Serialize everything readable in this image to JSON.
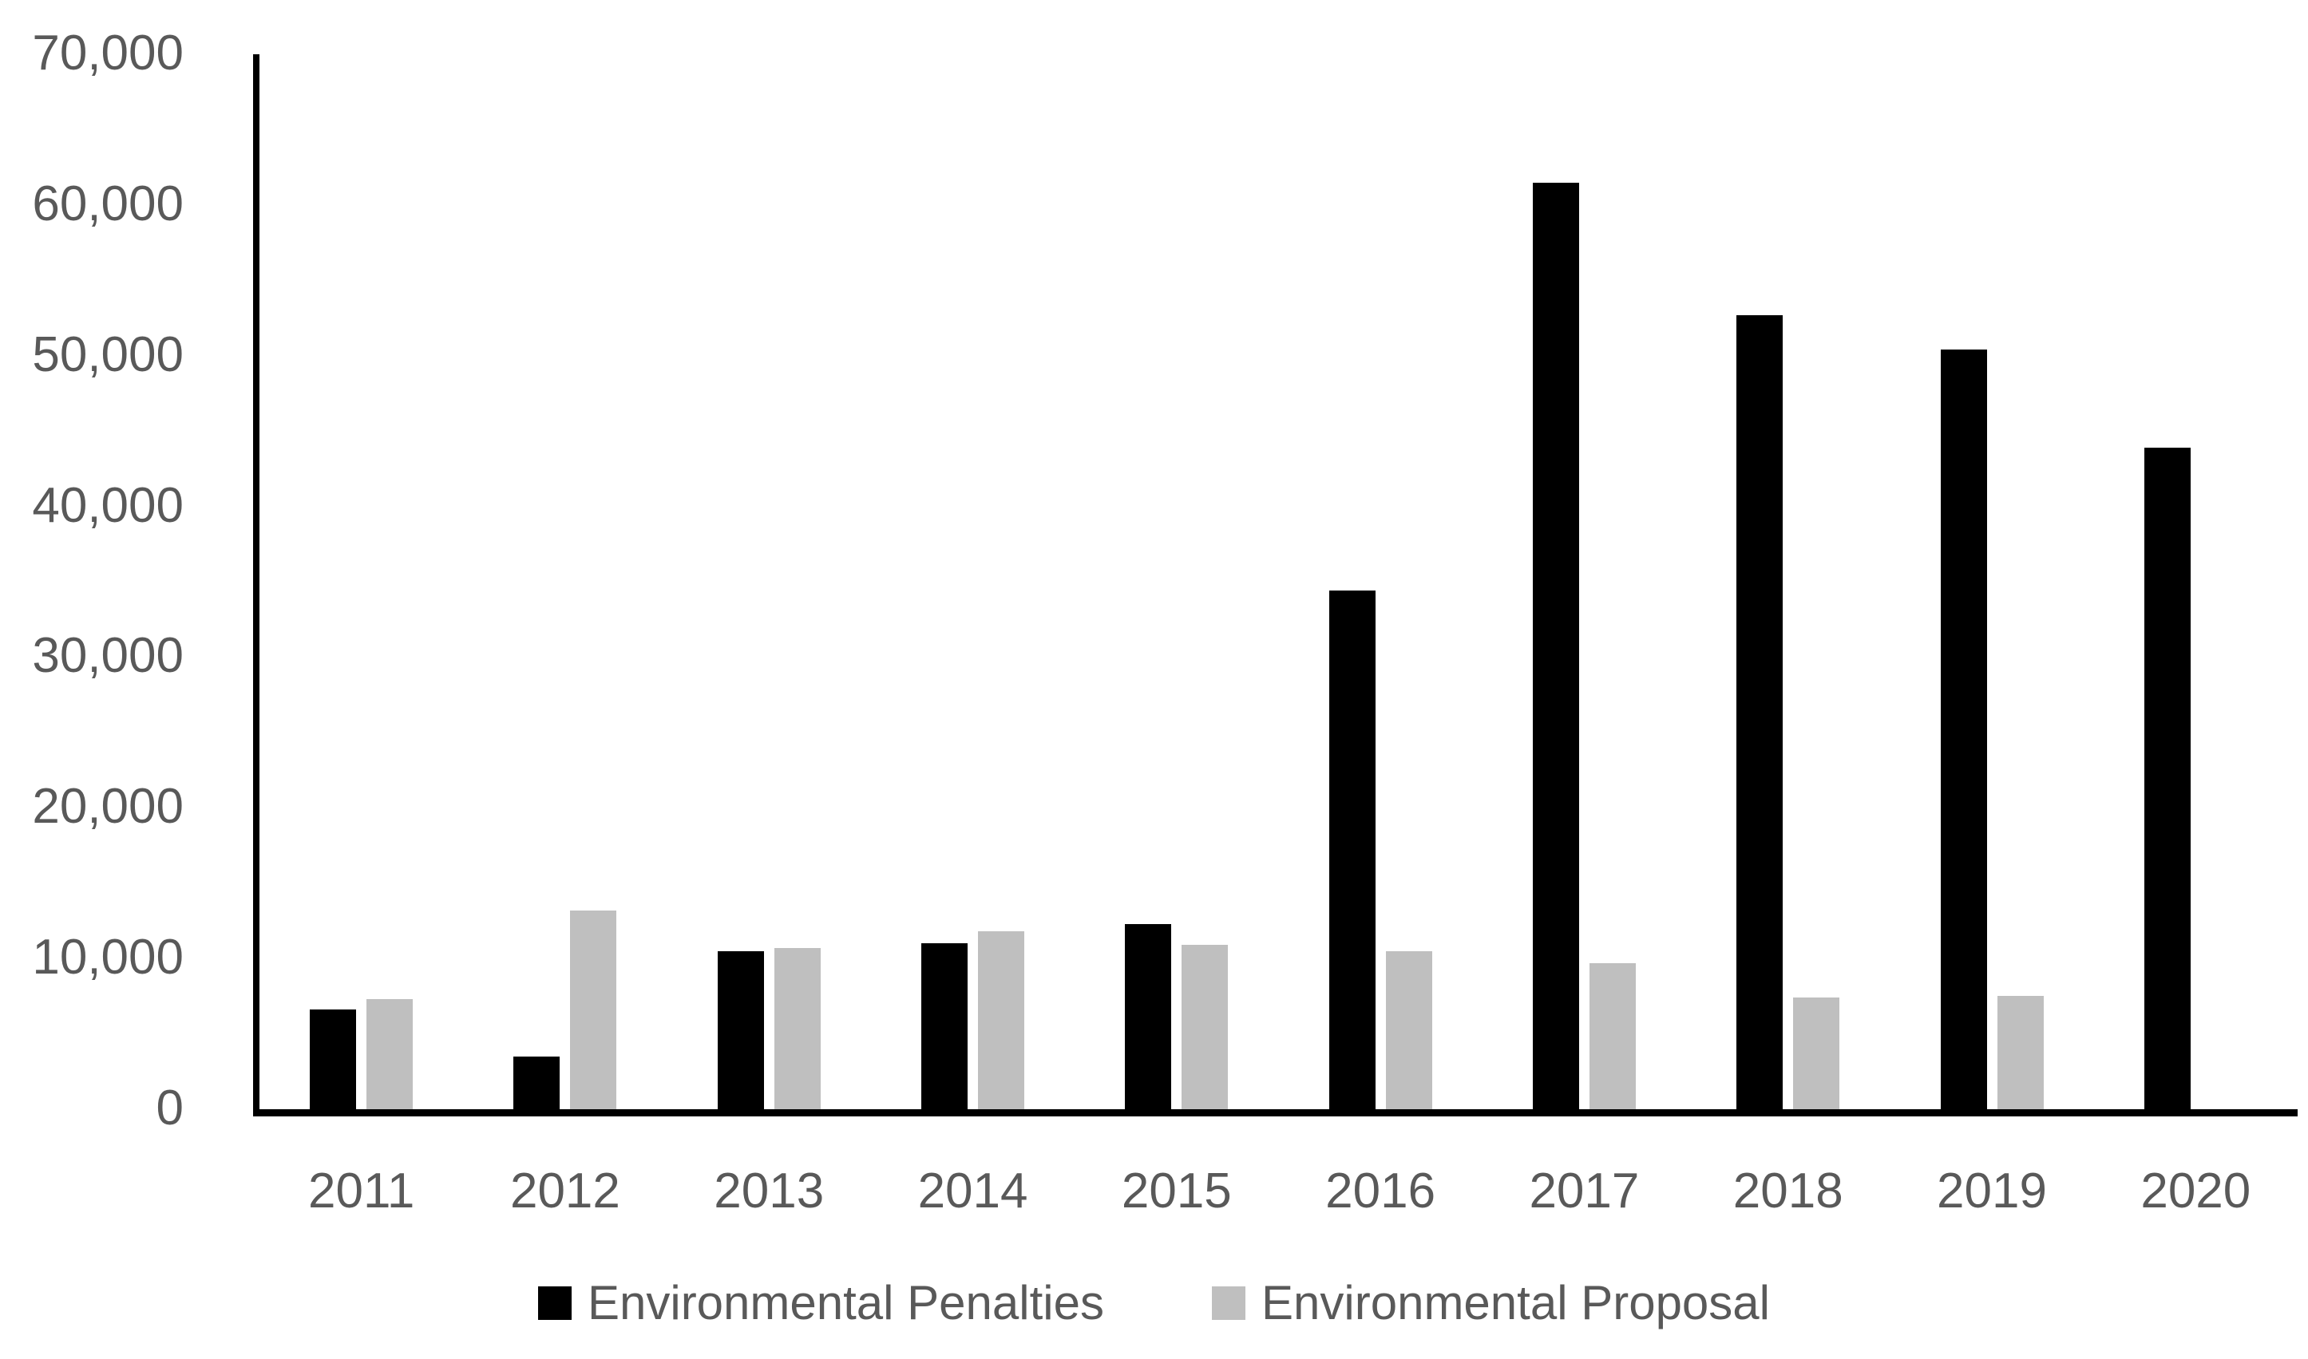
{
  "chart_data": {
    "type": "bar",
    "title": "",
    "xlabel": "",
    "ylabel": "",
    "categories": [
      "2011",
      "2012",
      "2013",
      "2014",
      "2015",
      "2016",
      "2017",
      "2018",
      "2019",
      "2020"
    ],
    "series": [
      {
        "name": "Environmental Penalties",
        "color": "#000000",
        "values": [
          6600,
          3500,
          10500,
          11000,
          12300,
          34400,
          61500,
          52700,
          50400,
          43900
        ]
      },
      {
        "name": "Environmental Proposal",
        "color": "#BFBFBF",
        "values": [
          7300,
          13200,
          10700,
          11800,
          10900,
          10500,
          9700,
          7400,
          7500,
          null
        ]
      }
    ],
    "ylim": [
      0,
      70000
    ],
    "ytick_interval": 10000,
    "yticks": [
      "70,000",
      "60,000",
      "50,000",
      "40,000",
      "30,000",
      "20,000",
      "10,000",
      "0"
    ],
    "grid": false,
    "legend_position": "bottom",
    "axis_color": "#000000",
    "label_color": "#595959",
    "background": "#FFFFFF"
  }
}
